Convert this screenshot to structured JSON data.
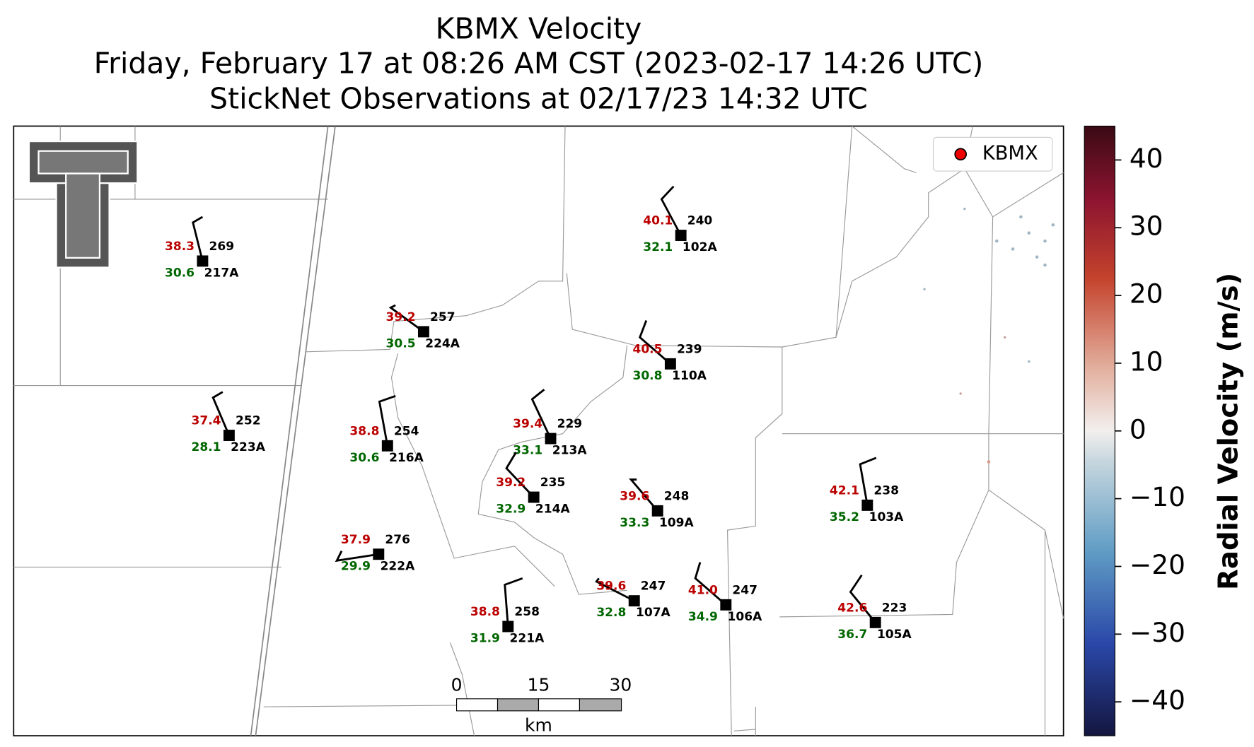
{
  "title": [
    "KBMX Velocity",
    "Friday, February 17 at 08:26 AM CST (2023-02-17 14:26 UTC)",
    "StickNet Observations at 02/17/23 14:32 UTC"
  ],
  "legend": "KBMX",
  "scale_bar": {
    "ticks": [
      "0",
      "15",
      "30"
    ],
    "unit": "km"
  },
  "colorbar": {
    "label": "Radial Velocity (m/s)",
    "lim": [
      -45,
      45
    ],
    "ticks": [
      {
        "value": 40,
        "label": "40"
      },
      {
        "value": 30,
        "label": "30"
      },
      {
        "value": 20,
        "label": "20"
      },
      {
        "value": 10,
        "label": "10"
      },
      {
        "value": 0,
        "label": "0"
      },
      {
        "value": -10,
        "label": "−10"
      },
      {
        "value": -20,
        "label": "−20"
      },
      {
        "value": -30,
        "label": "−30"
      },
      {
        "value": -40,
        "label": "−40"
      }
    ]
  },
  "stations": [
    {
      "id": "217A",
      "temp": "38.3",
      "dew": "30.6",
      "value": "269"
    },
    {
      "id": "224A",
      "temp": "39.2",
      "dew": "30.5",
      "value": "257"
    },
    {
      "id": "223A",
      "temp": "37.4",
      "dew": "28.1",
      "value": "252"
    },
    {
      "id": "216A",
      "temp": "38.8",
      "dew": "30.6",
      "value": "254"
    },
    {
      "id": "213A",
      "temp": "39.4",
      "dew": "33.1",
      "value": "229"
    },
    {
      "id": "214A",
      "temp": "39.2",
      "dew": "32.9",
      "value": "235"
    },
    {
      "id": "222A",
      "temp": "37.9",
      "dew": "29.9",
      "value": "276"
    },
    {
      "id": "221A",
      "temp": "38.8",
      "dew": "31.9",
      "value": "258"
    },
    {
      "id": "107A",
      "temp": "39.6",
      "dew": "32.8",
      "value": "247"
    },
    {
      "id": "109A",
      "temp": "39.6",
      "dew": "33.3",
      "value": "248"
    },
    {
      "id": "106A",
      "temp": "41.0",
      "dew": "34.9",
      "value": "247"
    },
    {
      "id": "102A",
      "temp": "40.1",
      "dew": "32.1",
      "value": "240"
    },
    {
      "id": "110A",
      "temp": "40.5",
      "dew": "30.8",
      "value": "239"
    },
    {
      "id": "103A",
      "temp": "42.1",
      "dew": "35.2",
      "value": "238"
    },
    {
      "id": "105A",
      "temp": "42.6",
      "dew": "36.7",
      "value": "223"
    }
  ]
}
